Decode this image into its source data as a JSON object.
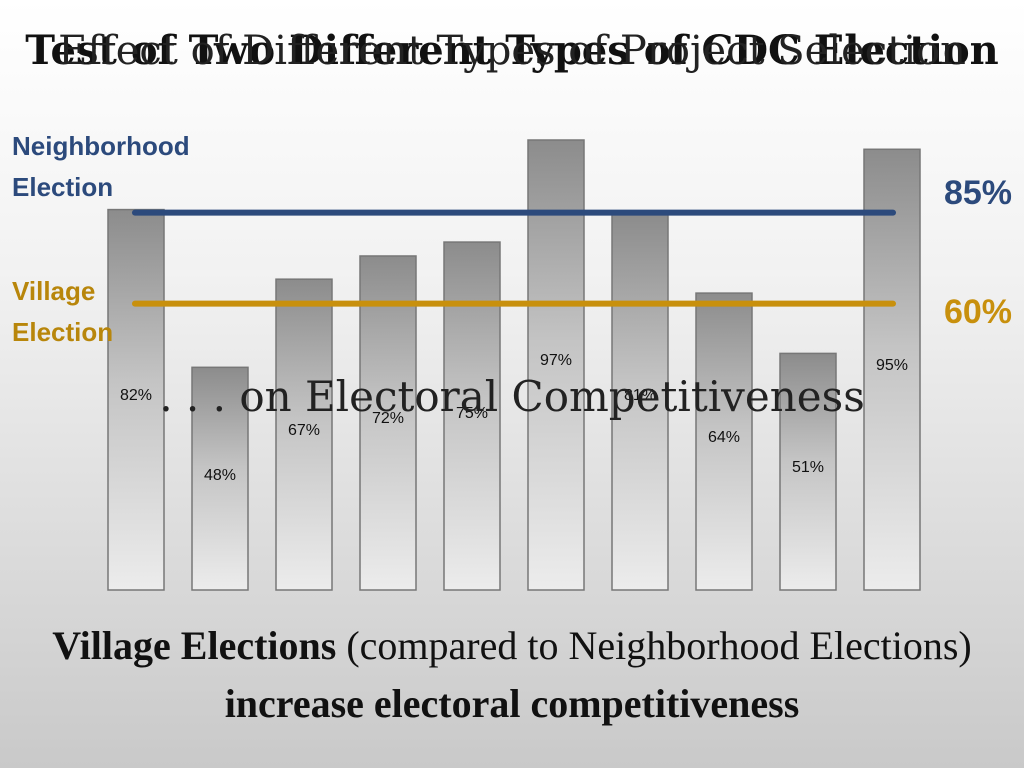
{
  "slide": {
    "title_overlay_a": "Test of Two Different Types of CDC Election",
    "title_overlay_b": "Effect of Different Types of Project Selection",
    "subtitle": ". . . on Electoral Competitiveness",
    "neighborhood_label_line1": "Neighborhood",
    "neighborhood_label_line2": "Election",
    "village_label_line1": "Village",
    "village_label_line2": "Election",
    "neighborhood_pct": "85%",
    "village_pct": "60%",
    "conclusion_bold1": "Village Elections",
    "conclusion_normal": " (compared to Neighborhood Elections) ",
    "conclusion_bold2": "increase electoral competitiveness"
  },
  "colors": {
    "neighborhood": "#2c4a7c",
    "village": "#c8900d"
  },
  "chart_data": {
    "type": "bar",
    "categories": [
      "",
      "",
      "",
      "",
      "",
      "",
      "",
      "",
      "",
      ""
    ],
    "values": [
      82,
      48,
      67,
      72,
      75,
      97,
      81,
      64,
      51,
      95
    ],
    "value_labels": [
      "82%",
      "48%",
      "67%",
      "72%",
      "75%",
      "97%",
      "81%",
      "64%",
      "51%",
      "95%"
    ],
    "reference_lines": [
      {
        "name": "Neighborhood Election",
        "value": 85
      },
      {
        "name": "Village Election",
        "value": 60
      }
    ],
    "ylim": [
      0,
      100
    ],
    "grid": false
  }
}
